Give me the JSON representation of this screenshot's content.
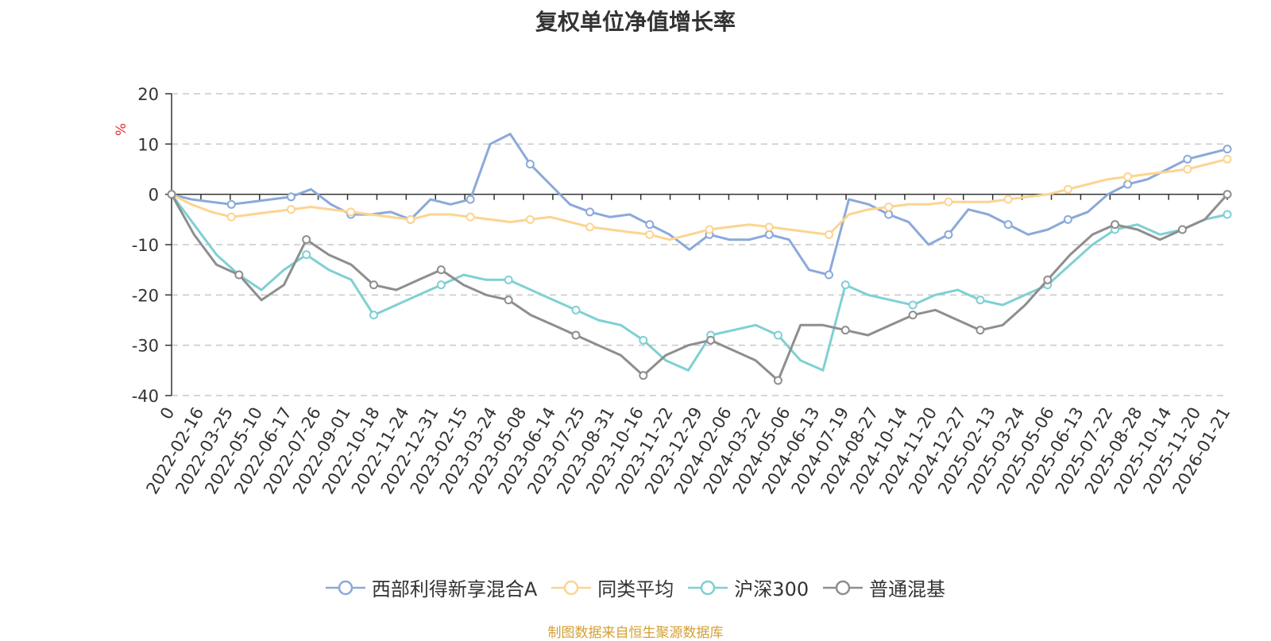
{
  "chart_data": {
    "type": "line",
    "title": "复权单位净值增长率",
    "ylabel": "%",
    "ylim": [
      -40,
      20
    ],
    "yticks": [
      -40,
      -30,
      -20,
      -10,
      0,
      10,
      20
    ],
    "grid": true,
    "legend_position": "bottom",
    "x_ticks": [
      "0",
      "2022-02-16",
      "2022-03-25",
      "2022-05-10",
      "2022-06-17",
      "2022-07-26",
      "2022-09-01",
      "2022-10-18",
      "2022-11-24",
      "2022-12-31",
      "2023-02-15",
      "2023-03-24",
      "2023-05-08",
      "2023-06-14",
      "2023-07-25",
      "2023-08-31",
      "2023-10-16",
      "2023-11-22",
      "2023-12-29",
      "2024-02-06",
      "2024-03-22",
      "2024-05-06",
      "2024-06-13",
      "2024-07-19",
      "2024-08-27",
      "2024-10-14",
      "2024-11-20",
      "2024-12-27",
      "2025-02-13",
      "2025-03-24",
      "2025-05-06",
      "2025-06-13",
      "2025-07-22",
      "2025-08-28",
      "2025-10-14",
      "2025-11-20",
      "2026-01-21"
    ],
    "series": [
      {
        "name": "西部利得新享混合A",
        "color": "#8ba9d9",
        "values": [
          0,
          -1,
          -1.5,
          -2,
          -1.5,
          -1,
          -0.5,
          1,
          -2,
          -4,
          -4,
          -3.5,
          -5,
          -1,
          -2,
          -1,
          10,
          12,
          6,
          2,
          -2,
          -3.5,
          -4.5,
          -4,
          -6,
          -8,
          -11,
          -8,
          -9,
          -9,
          -8,
          -9,
          -15,
          -16,
          -1,
          -2,
          -4,
          -5.5,
          -10,
          -8,
          -3,
          -4,
          -6,
          -8,
          -7,
          -5,
          -3.5,
          0,
          2,
          3,
          5,
          7,
          8,
          9
        ]
      },
      {
        "name": "同类平均",
        "color": "#fcd491",
        "values": [
          0,
          -2,
          -3.5,
          -4.5,
          -4,
          -3.5,
          -3,
          -2.5,
          -3,
          -3.5,
          -4,
          -4.5,
          -5,
          -4,
          -4,
          -4.5,
          -5,
          -5.5,
          -5,
          -4.5,
          -5.5,
          -6.5,
          -7,
          -7.5,
          -8,
          -9,
          -8,
          -7,
          -6.5,
          -6,
          -6.5,
          -7,
          -7.5,
          -8,
          -4,
          -3,
          -2.5,
          -2,
          -2,
          -1.5,
          -1.5,
          -1.5,
          -1,
          -0.5,
          0,
          1,
          2,
          3,
          3.5,
          4,
          4.5,
          5,
          6,
          7
        ]
      },
      {
        "name": "沪深300",
        "color": "#7fd0d3",
        "values": [
          0,
          -6,
          -12,
          -16,
          -19,
          -15,
          -12,
          -15,
          -17,
          -24,
          -22,
          -20,
          -18,
          -16,
          -17,
          -17,
          -19,
          -21,
          -23,
          -25,
          -26,
          -29,
          -33,
          -35,
          -28,
          -27,
          -26,
          -28,
          -33,
          -35,
          -18,
          -20,
          -21,
          -22,
          -20,
          -19,
          -21,
          -22,
          -20,
          -18,
          -14,
          -10,
          -7,
          -6,
          -8,
          -7,
          -5,
          -4
        ]
      },
      {
        "name": "普通混基",
        "color": "#8e8e8e",
        "values": [
          0,
          -8,
          -14,
          -16,
          -21,
          -18,
          -9,
          -12,
          -14,
          -18,
          -19,
          -17,
          -15,
          -18,
          -20,
          -21,
          -24,
          -26,
          -28,
          -30,
          -32,
          -36,
          -32,
          -30,
          -29,
          -31,
          -33,
          -37,
          -26,
          -26,
          -27,
          -28,
          -26,
          -24,
          -23,
          -25,
          -27,
          -26,
          -22,
          -17,
          -12,
          -8,
          -6,
          -7,
          -9,
          -7,
          -5,
          0
        ]
      }
    ]
  },
  "source_note": "制图数据来自恒生聚源数据库"
}
